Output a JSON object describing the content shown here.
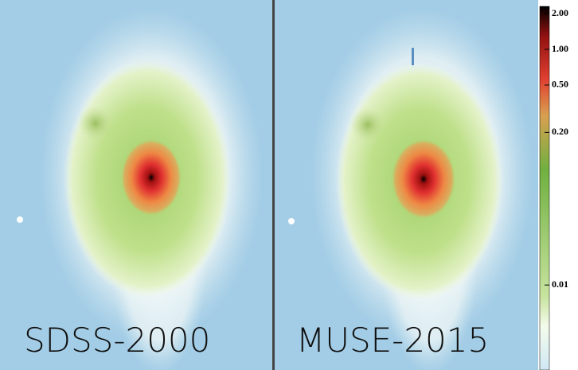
{
  "panels": [
    {
      "label": "SDSS-2000"
    },
    {
      "label": "MUSE-2015"
    }
  ],
  "colorbar": {
    "ticks": [
      {
        "value": 2,
        "label": "2.00"
      },
      {
        "value": 1,
        "label": "1.00"
      },
      {
        "value": 0.5,
        "label": "0.50"
      },
      {
        "value": 0.2,
        "label": "0.20"
      },
      {
        "value": 0.01,
        "label": "0.01"
      }
    ]
  }
}
